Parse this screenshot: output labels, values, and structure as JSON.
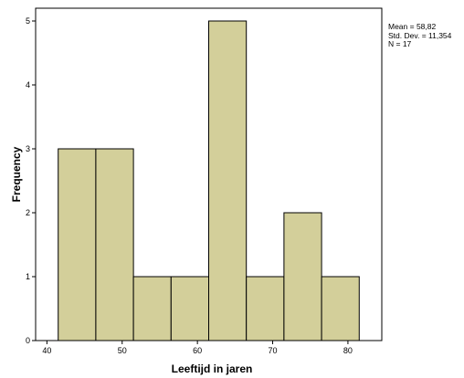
{
  "chart_data": {
    "type": "bar",
    "subtype": "histogram",
    "bins": [
      {
        "x0": 41.5,
        "x1": 46.5,
        "count": 3
      },
      {
        "x0": 46.5,
        "x1": 51.5,
        "count": 3
      },
      {
        "x0": 51.5,
        "x1": 56.5,
        "count": 1
      },
      {
        "x0": 56.5,
        "x1": 61.5,
        "count": 1
      },
      {
        "x0": 61.5,
        "x1": 66.5,
        "count": 5
      },
      {
        "x0": 66.5,
        "x1": 71.5,
        "count": 1
      },
      {
        "x0": 71.5,
        "x1": 76.5,
        "count": 2
      },
      {
        "x0": 76.5,
        "x1": 81.5,
        "count": 1
      }
    ],
    "xlabel": "Leeftijd in jaren",
    "ylabel": "Frequency",
    "xlim": [
      38.5,
      84.5
    ],
    "ylim": [
      0,
      5.2
    ],
    "xticks": [
      40,
      50,
      60,
      70,
      80
    ],
    "yticks": [
      0,
      1,
      2,
      3,
      4,
      5
    ],
    "bar_color": "#d3cf9a",
    "grid": false
  },
  "stats": {
    "mean": "Mean = 58,82",
    "std": "Std. Dev. = 11,354",
    "n": "N = 17"
  }
}
